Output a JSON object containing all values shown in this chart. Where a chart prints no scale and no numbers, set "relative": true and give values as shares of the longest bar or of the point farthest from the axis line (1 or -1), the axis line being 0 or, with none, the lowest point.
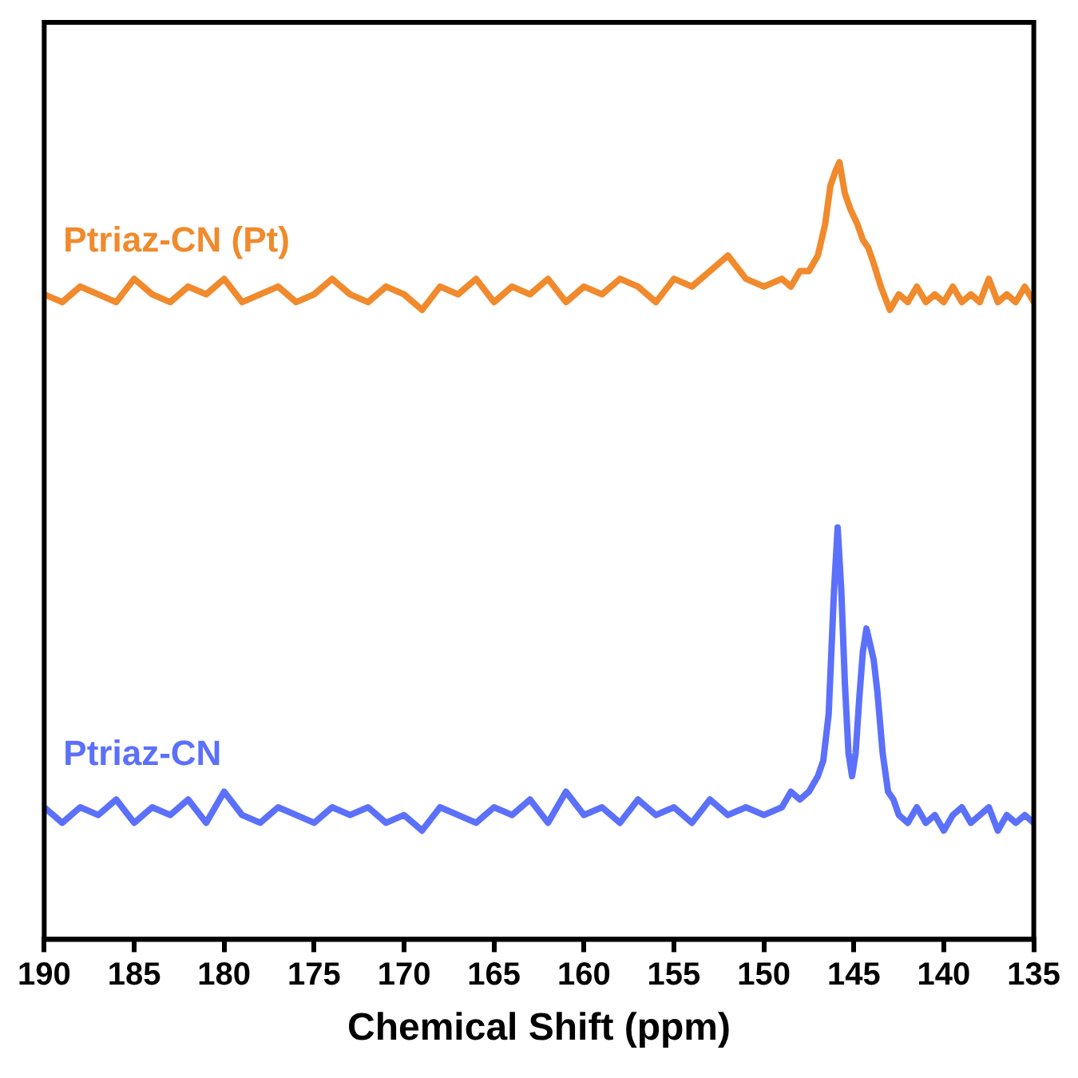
{
  "chart_data": {
    "type": "line",
    "xlabel": "Chemical Shift (ppm)",
    "relative": true,
    "xlim": [
      190,
      135
    ],
    "xticks": [
      190,
      185,
      180,
      175,
      170,
      165,
      160,
      155,
      150,
      145,
      140,
      135
    ],
    "grid": false,
    "legend": false,
    "marker": "none",
    "line_style": "solid",
    "series": [
      {
        "name": "Ptriaz-CN (Pt)",
        "color": "#f08a2c",
        "x": [
          190,
          189,
          188,
          187,
          186,
          185,
          184,
          183,
          182,
          181,
          180,
          179,
          178,
          177,
          176,
          175,
          174,
          173,
          172,
          171,
          170,
          169,
          168,
          167,
          166,
          165,
          164,
          163,
          162,
          161,
          160,
          159,
          158,
          157,
          156,
          155,
          154,
          153,
          152,
          151,
          150,
          149,
          148.5,
          148,
          147.5,
          147,
          146.6,
          146.3,
          146,
          145.8,
          145.5,
          145.2,
          144.8,
          144.5,
          144.2,
          143.9,
          143.5,
          143,
          142.5,
          142,
          141.5,
          141,
          140.5,
          140,
          139.5,
          139,
          138.5,
          138,
          137.5,
          137,
          136.5,
          136,
          135.5,
          135
        ],
        "values": [
          0.83,
          0.82,
          0.84,
          0.83,
          0.82,
          0.85,
          0.83,
          0.82,
          0.84,
          0.83,
          0.85,
          0.82,
          0.83,
          0.84,
          0.82,
          0.83,
          0.85,
          0.83,
          0.82,
          0.84,
          0.83,
          0.81,
          0.84,
          0.83,
          0.85,
          0.82,
          0.84,
          0.83,
          0.85,
          0.82,
          0.84,
          0.83,
          0.85,
          0.84,
          0.82,
          0.85,
          0.84,
          0.86,
          0.88,
          0.85,
          0.84,
          0.85,
          0.84,
          0.86,
          0.86,
          0.88,
          0.92,
          0.97,
          0.99,
          1,
          0.96,
          0.94,
          0.92,
          0.9,
          0.89,
          0.87,
          0.84,
          0.81,
          0.83,
          0.82,
          0.84,
          0.82,
          0.83,
          0.82,
          0.84,
          0.82,
          0.83,
          0.82,
          0.85,
          0.82,
          0.83,
          0.82,
          0.84,
          0.82
        ]
      },
      {
        "name": "Ptriaz-CN",
        "color": "#5b70fb",
        "x": [
          190,
          189,
          188,
          187,
          186,
          185,
          184,
          183,
          182,
          181,
          180,
          179,
          178,
          177,
          176,
          175,
          174,
          173,
          172,
          171,
          170,
          169,
          168,
          167,
          166,
          165,
          164,
          163,
          162,
          161,
          160,
          159,
          158,
          157,
          156,
          155,
          154,
          153,
          152,
          151,
          150,
          149,
          148.5,
          148,
          147.5,
          147,
          146.7,
          146.4,
          146.1,
          145.9,
          145.7,
          145.5,
          145.3,
          145.1,
          144.9,
          144.7,
          144.5,
          144.3,
          144.1,
          143.9,
          143.7,
          143.4,
          143.1,
          142.8,
          142.5,
          142,
          141.5,
          141,
          140.5,
          140,
          139.5,
          139,
          138.5,
          138,
          137.5,
          137,
          136.5,
          136,
          135.5,
          135
        ],
        "values": [
          0.17,
          0.15,
          0.17,
          0.16,
          0.18,
          0.15,
          0.17,
          0.16,
          0.18,
          0.15,
          0.19,
          0.16,
          0.15,
          0.17,
          0.16,
          0.15,
          0.17,
          0.16,
          0.17,
          0.15,
          0.16,
          0.14,
          0.17,
          0.16,
          0.15,
          0.17,
          0.16,
          0.18,
          0.15,
          0.19,
          0.16,
          0.17,
          0.15,
          0.18,
          0.16,
          0.17,
          0.15,
          0.18,
          0.16,
          0.17,
          0.16,
          0.17,
          0.19,
          0.18,
          0.19,
          0.21,
          0.23,
          0.29,
          0.45,
          0.53,
          0.45,
          0.33,
          0.24,
          0.21,
          0.24,
          0.31,
          0.37,
          0.4,
          0.38,
          0.36,
          0.32,
          0.24,
          0.19,
          0.18,
          0.16,
          0.15,
          0.17,
          0.15,
          0.16,
          0.14,
          0.16,
          0.17,
          0.15,
          0.16,
          0.17,
          0.14,
          0.16,
          0.15,
          0.16,
          0.15
        ]
      }
    ]
  }
}
